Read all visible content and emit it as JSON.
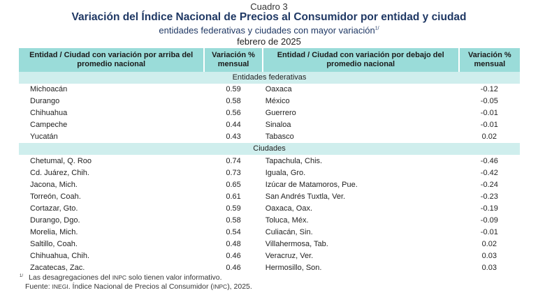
{
  "header": {
    "cuadro": "Cuadro 3",
    "title": "Variación del Índice Nacional de Precios al Consumidor por entidad y ciudad",
    "subtitle": "entidades federativas y ciudades con mayor variación",
    "subtitle_sup": "1/",
    "date": "febrero de 2025"
  },
  "table": {
    "columns": [
      "Entidad / Ciudad con variación por arriba del promedio nacional",
      "Variación % mensual",
      "Entidad / Ciudad con variación por debajo del promedio nacional",
      "Variación % mensual"
    ],
    "sections": [
      {
        "label": "Entidades federativas",
        "rows": [
          [
            "Michoacán",
            "0.59",
            "Oaxaca",
            "-0.12"
          ],
          [
            "Durango",
            "0.58",
            "México",
            "-0.05"
          ],
          [
            "Chihuahua",
            "0.56",
            "Guerrero",
            "-0.01"
          ],
          [
            "Campeche",
            "0.44",
            "Sinaloa",
            "-0.01"
          ],
          [
            "Yucatán",
            "0.43",
            "Tabasco",
            "0.02"
          ]
        ]
      },
      {
        "label": "Ciudades",
        "rows": [
          [
            "Chetumal, Q. Roo",
            "0.74",
            "Tapachula, Chis.",
            "-0.46"
          ],
          [
            "Cd. Juárez, Chih.",
            "0.73",
            "Iguala, Gro.",
            "-0.42"
          ],
          [
            "Jacona, Mich.",
            "0.65",
            "Izúcar de Matamoros, Pue.",
            "-0.24"
          ],
          [
            "Torreón, Coah.",
            "0.61",
            "San Andrés Tuxtla, Ver.",
            "-0.23"
          ],
          [
            "Cortazar, Gto.",
            "0.59",
            "Oaxaca, Oax.",
            "-0.19"
          ],
          [
            "Durango, Dgo.",
            "0.58",
            "Toluca, Méx.",
            "-0.09"
          ],
          [
            "Morelia, Mich.",
            "0.54",
            "Culiacán, Sin.",
            "-0.01"
          ],
          [
            "Saltillo, Coah.",
            "0.48",
            "Villahermosa, Tab.",
            "0.02"
          ],
          [
            "Chihuahua, Chih.",
            "0.46",
            "Veracruz, Ver.",
            "0.03"
          ],
          [
            "Zacatecas, Zac.",
            "0.46",
            "Hermosillo, Son.",
            "0.03"
          ]
        ]
      }
    ]
  },
  "footer": {
    "note_sup": "1/",
    "note_a": "Las desagregaciones del ",
    "note_inpc": "INPC",
    "note_b": " solo tienen valor informativo.",
    "source_a": "Fuente: ",
    "source_inegi": "INEGI",
    "source_b": ". Índice Nacional de Precios al Consumidor (",
    "source_inpc": "INPC",
    "source_c": "), 2025."
  }
}
